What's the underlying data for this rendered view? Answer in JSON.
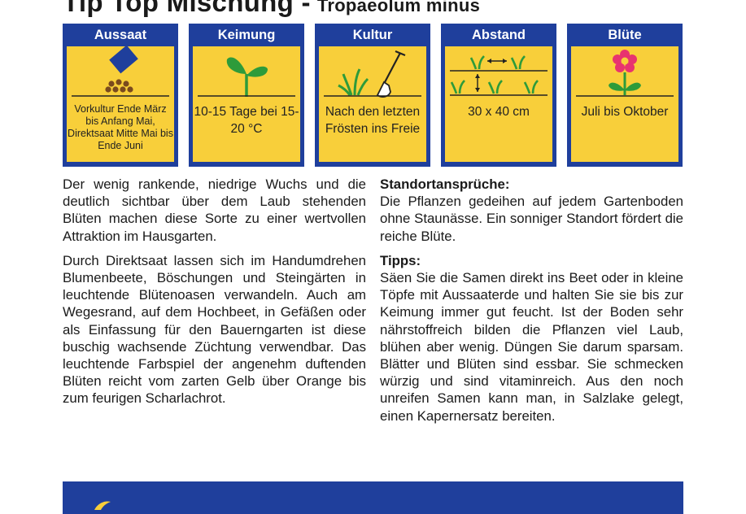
{
  "header": {
    "title": "Tip Top Mischung -",
    "latin_name": "Tropaeolum minus"
  },
  "cards": [
    {
      "title": "Aussaat",
      "icon": "sowing-icon",
      "text": "Vorkultur Ende März bis Anfang Mai, Direktsaat Mitte Mai bis Ende Juni"
    },
    {
      "title": "Keimung",
      "icon": "seedling-icon",
      "text": "10-15 Tage bei 15-20 °C"
    },
    {
      "title": "Kultur",
      "icon": "spade-icon",
      "text": "Nach den letzten Frösten ins Freie"
    },
    {
      "title": "Abstand",
      "icon": "spacing-icon",
      "text": "30 x  40 cm"
    },
    {
      "title": "Blüte",
      "icon": "flower-icon",
      "text": "Juli bis Oktober"
    }
  ],
  "left_column": {
    "p1": "Der wenig rankende, niedrige Wuchs und die deutlich sichtbar über dem Laub stehenden Blüten machen diese Sorte zu einer wertvollen Attraktion im Hausgarten.",
    "p2": "Durch Direktsaat lassen sich im Handumdrehen Blumenbeete, Böschungen und Steingärten in leuchtende Blütenoasen verwandeln. Auch am Wegesrand, auf dem Hochbeet, in Gefäßen oder als Einfassung für den Bauerngarten ist diese buschig wachsende Züchtung verwendbar. Das leuchtende Farbspiel der angenehm duftenden Blüten reicht vom zarten Gelb über Orange bis zum feurigen Scharlachrot."
  },
  "right_column": {
    "heading1": "Standortansprüche:",
    "p1": "Die Pflanzen gedeihen auf jedem Gartenboden ohne Staunässe. Ein sonniger Standort fördert die reiche Blüte.",
    "heading2": "Tipps:",
    "p2": "Säen Sie die Samen direkt ins Beet oder in kleine Töpfe mit Aussaaterde und halten Sie sie bis zur Keimung immer gut feucht. Ist der Boden sehr nährstoffreich bilden die Pflanzen viel Laub, blühen aber wenig. Düngen Sie darum sparsam. Blätter und Blüten sind essbar. Sie schmecken würzig und sind vitaminreich. Aus den noch unreifen Samen kann man, in Salzlake gelegt, einen Kapernersatz bereiten."
  },
  "colors": {
    "card_frame": "#1f3f9c",
    "card_fill": "#f8cf3a",
    "plant_green": "#2e9b3a",
    "flower_pink": "#e8336f",
    "seed_brown": "#7a4a1e"
  }
}
